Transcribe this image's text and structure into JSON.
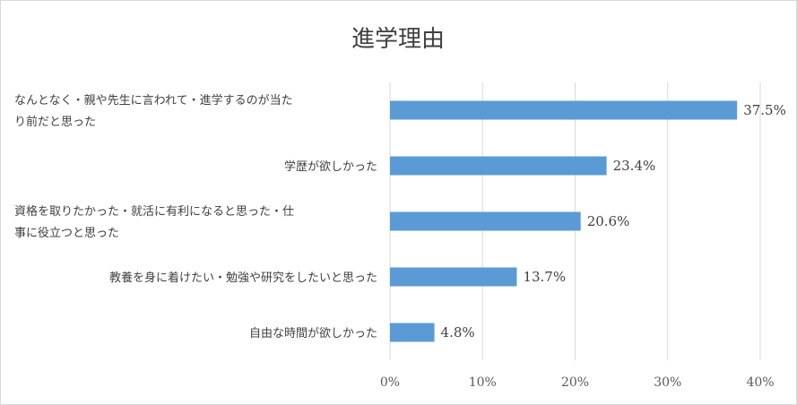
{
  "chart_data": {
    "type": "bar",
    "orientation": "horizontal",
    "title": "進学理由",
    "xlabel": "",
    "ylabel": "",
    "xlim": [
      0,
      40
    ],
    "ticks": [
      "0%",
      "10%",
      "20%",
      "30%",
      "40%"
    ],
    "tick_values": [
      0,
      10,
      20,
      30,
      40
    ],
    "grid": true,
    "bar_color": "#5b9bd5",
    "categories": [
      [
        "なんとなく・親や先生に言われて・進学するのが当た",
        "り前だと思った"
      ],
      [
        "学歴が欲しかった"
      ],
      [
        "資格を取りたかった・就活に有利になると思った・仕",
        "事に役立つと思った"
      ],
      [
        "教養を身に着けたい・勉強や研究をしたいと思った"
      ],
      [
        "自由な時間が欲しかった"
      ]
    ],
    "values": [
      37.5,
      23.4,
      20.6,
      13.7,
      4.8
    ],
    "data_labels": [
      "37.5%",
      "23.4%",
      "20.6%",
      "13.7%",
      "4.8%"
    ]
  }
}
